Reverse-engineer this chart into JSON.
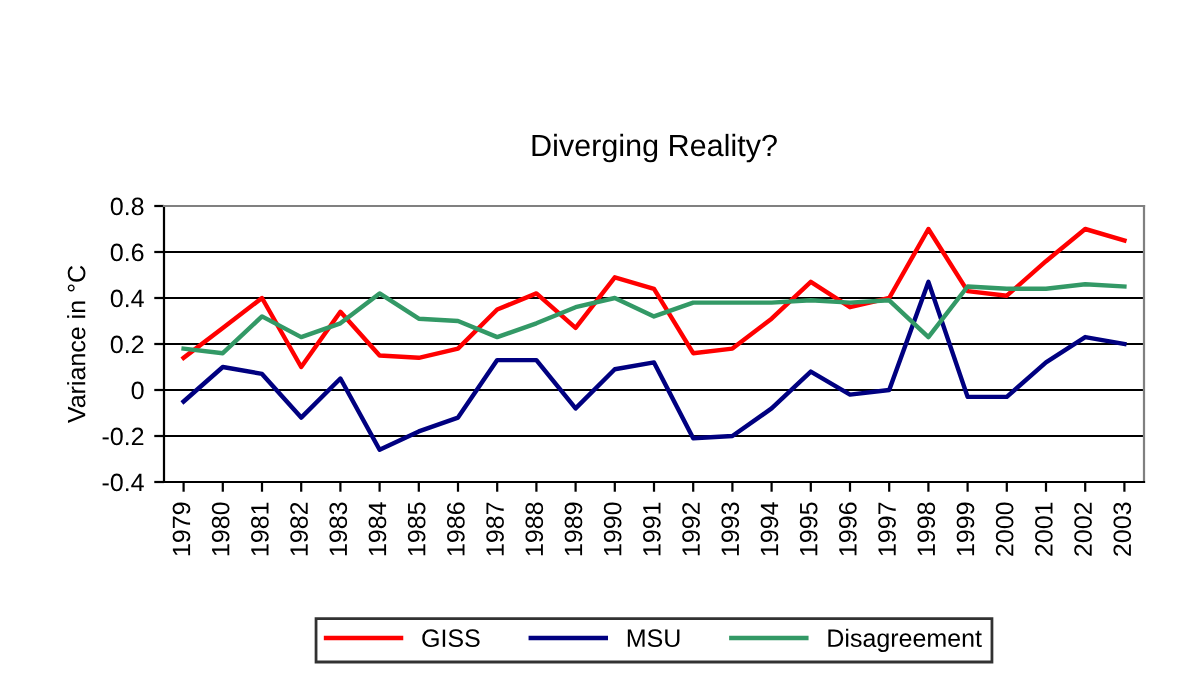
{
  "chart_data": {
    "type": "line",
    "title": "Diverging Reality?",
    "ylabel": "Variance in °C",
    "categories": [
      "1979",
      "1980",
      "1981",
      "1982",
      "1983",
      "1984",
      "1985",
      "1986",
      "1987",
      "1988",
      "1989",
      "1990",
      "1991",
      "1992",
      "1993",
      "1994",
      "1995",
      "1996",
      "1997",
      "1998",
      "1999",
      "2000",
      "2001",
      "2002",
      "2003"
    ],
    "series": [
      {
        "name": "GISS",
        "color": "#ff0000",
        "values": [
          0.14,
          0.27,
          0.4,
          0.1,
          0.34,
          0.15,
          0.14,
          0.18,
          0.35,
          0.42,
          0.27,
          0.49,
          0.44,
          0.16,
          0.18,
          0.31,
          0.47,
          0.36,
          0.4,
          0.7,
          0.43,
          0.41,
          0.56,
          0.7,
          0.65
        ]
      },
      {
        "name": "MSU",
        "color": "#000080",
        "values": [
          -0.05,
          0.1,
          0.07,
          -0.12,
          0.05,
          -0.26,
          -0.18,
          -0.12,
          0.13,
          0.13,
          -0.08,
          0.09,
          0.12,
          -0.21,
          -0.2,
          -0.08,
          0.08,
          -0.02,
          0.0,
          0.47,
          -0.03,
          -0.03,
          0.12,
          0.23,
          0.2
        ]
      },
      {
        "name": "Disagreement",
        "color": "#339966",
        "values": [
          0.18,
          0.16,
          0.32,
          0.23,
          0.29,
          0.42,
          0.31,
          0.3,
          0.23,
          0.29,
          0.36,
          0.4,
          0.32,
          0.38,
          0.38,
          0.38,
          0.39,
          0.38,
          0.39,
          0.23,
          0.45,
          0.44,
          0.44,
          0.46,
          0.45
        ]
      }
    ],
    "ylim": [
      -0.4,
      0.8
    ],
    "yticks": [
      {
        "value": -0.4,
        "label": "-0.4"
      },
      {
        "value": -0.2,
        "label": "-0.2"
      },
      0,
      0.2,
      0.4,
      0.6,
      0.8
    ],
    "grid": "y",
    "legend": "bottom",
    "line_style": "solid",
    "marker": "none"
  }
}
